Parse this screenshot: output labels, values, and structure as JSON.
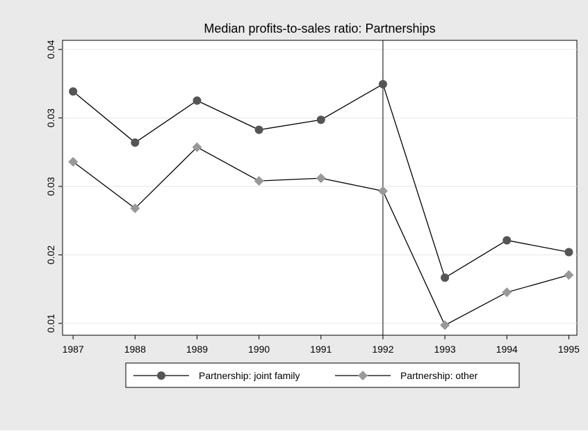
{
  "chart_data": {
    "type": "line",
    "title": "Median profits-to-sales ratio: Partnerships",
    "x": [
      1987,
      1988,
      1989,
      1990,
      1991,
      1992,
      1993,
      1994,
      1995
    ],
    "xlim": [
      1986.83,
      1995.13
    ],
    "xticks": [
      1987,
      1988,
      1989,
      1990,
      1991,
      1992,
      1993,
      1994,
      1995
    ],
    "ylim": [
      0.0087,
      0.041
    ],
    "yticks": [
      0.01,
      {
        "value": 0.0175,
        "label": "0.02"
      },
      {
        "value": 0.025,
        "label": "0.03"
      },
      {
        "value": 0.0325,
        "label": "0.03"
      },
      0.04
    ],
    "grid": true,
    "vline": 1992,
    "legend": "bottom",
    "series": [
      {
        "name": "Partnership: joint family",
        "color": "#555555",
        "marker": "circle",
        "values": [
          0.0354,
          0.0298,
          0.0344,
          0.0312,
          0.0323,
          0.0362,
          0.015,
          0.0191,
          0.0178
        ]
      },
      {
        "name": "Partnership: other",
        "color": "#999999",
        "marker": "diamond",
        "values": [
          0.0277,
          0.0226,
          0.0293,
          0.0256,
          0.0259,
          0.0245,
          0.0098,
          0.0134,
          0.0153
        ]
      }
    ]
  }
}
